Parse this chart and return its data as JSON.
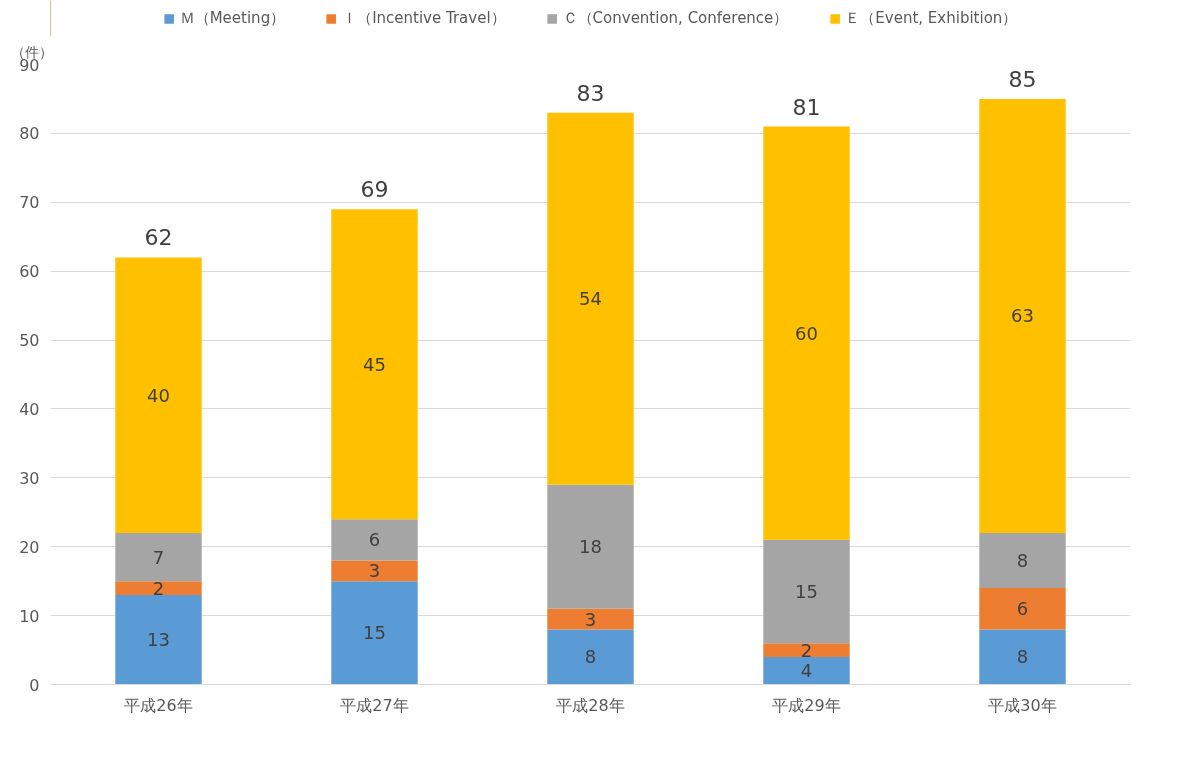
{
  "chart_data": {
    "type": "bar",
    "stacked": true,
    "ylabel": "（件）",
    "categories": [
      "平成26年",
      "平成27年",
      "平成28年",
      "平成29年",
      "平成30年"
    ],
    "series": [
      {
        "name": "Ｍ（Meeting）",
        "color": "#5b9bd5",
        "values": [
          13,
          15,
          8,
          4,
          8
        ]
      },
      {
        "name": "Ｉ（Incentive Travel）",
        "color": "#ed7d31",
        "values": [
          2,
          3,
          3,
          2,
          6
        ]
      },
      {
        "name": "Ｃ（Convention, Conference）",
        "color": "#a5a5a5",
        "values": [
          7,
          6,
          18,
          15,
          8
        ]
      },
      {
        "name": "Ｅ（Event, Exhibition）",
        "color": "#ffc000",
        "values": [
          40,
          45,
          54,
          60,
          63
        ]
      }
    ],
    "totals": [
      "62",
      "69",
      "83",
      "81",
      "85"
    ],
    "ylim": [
      0,
      90
    ],
    "yticks": [
      0,
      10,
      20,
      30,
      40,
      50,
      60,
      70,
      80,
      90
    ],
    "grid": "y",
    "legend": "top",
    "data_labels": true
  }
}
